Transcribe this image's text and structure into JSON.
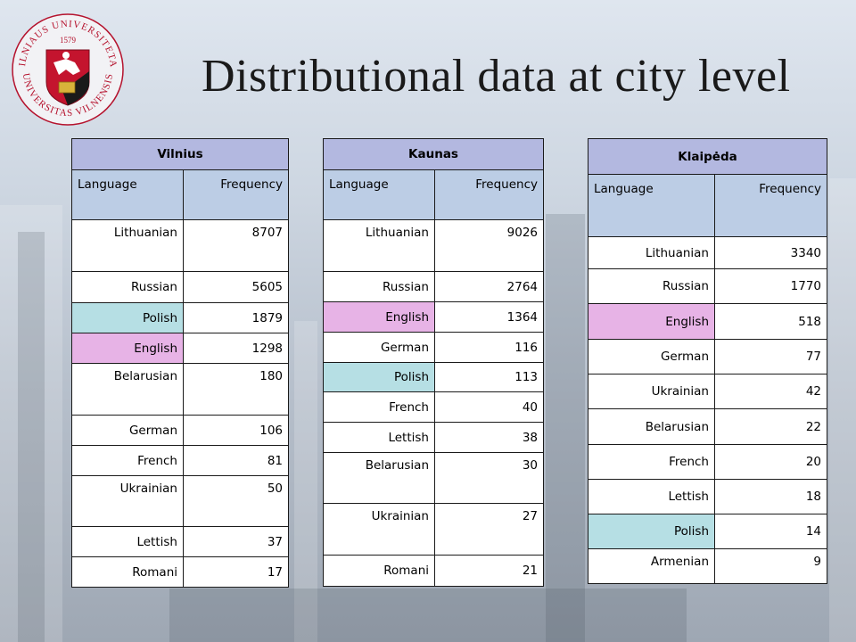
{
  "slide": {
    "title": "Distributional data at city level"
  },
  "logo": {
    "text_top": "VILNIAUS UNIVERSITETAS",
    "year": "1579",
    "text_bottom": "UNIVERSITAS VILNENSIS"
  },
  "tables": {
    "vilnius": {
      "city": "Vilnius",
      "col_language": "Language",
      "col_frequency": "Frequency",
      "rows": [
        {
          "language": "Lithuanian",
          "frequency": "8707"
        },
        {
          "language": "Russian",
          "frequency": "5605"
        },
        {
          "language": "Polish",
          "frequency": "1879"
        },
        {
          "language": "English",
          "frequency": "1298"
        },
        {
          "language": "Belarusian",
          "frequency": "180"
        },
        {
          "language": "German",
          "frequency": "106"
        },
        {
          "language": "French",
          "frequency": "81"
        },
        {
          "language": "Ukrainian",
          "frequency": "50"
        },
        {
          "language": "Lettish",
          "frequency": "37"
        },
        {
          "language": "Romani",
          "frequency": "17"
        }
      ]
    },
    "kaunas": {
      "city": "Kaunas",
      "col_language": "Language",
      "col_frequency": "Frequency",
      "rows": [
        {
          "language": "Lithuanian",
          "frequency": "9026"
        },
        {
          "language": "Russian",
          "frequency": "2764"
        },
        {
          "language": "English",
          "frequency": "1364"
        },
        {
          "language": "German",
          "frequency": "116"
        },
        {
          "language": "Polish",
          "frequency": "113"
        },
        {
          "language": "French",
          "frequency": "40"
        },
        {
          "language": "Lettish",
          "frequency": "38"
        },
        {
          "language": "Belarusian",
          "frequency": "30"
        },
        {
          "language": "Ukrainian",
          "frequency": "27"
        },
        {
          "language": "Romani",
          "frequency": "21"
        }
      ]
    },
    "klaipeda": {
      "city": "Klaipėda",
      "col_language": "Language",
      "col_frequency": "Frequency",
      "rows": [
        {
          "language": "Lithuanian",
          "frequency": "3340"
        },
        {
          "language": "Russian",
          "frequency": "1770"
        },
        {
          "language": "English",
          "frequency": "518"
        },
        {
          "language": "German",
          "frequency": "77"
        },
        {
          "language": "Ukrainian",
          "frequency": "42"
        },
        {
          "language": "Belarusian",
          "frequency": "22"
        },
        {
          "language": "French",
          "frequency": "20"
        },
        {
          "language": "Lettish",
          "frequency": "18"
        },
        {
          "language": "Polish",
          "frequency": "14"
        },
        {
          "language": "Armenian",
          "frequency": "9"
        }
      ]
    }
  },
  "colors": {
    "city_header": "#b3b8e0",
    "column_header": "#bccde5",
    "polish_highlight": "#b6dfe4",
    "english_highlight": "#e7b3e6"
  }
}
